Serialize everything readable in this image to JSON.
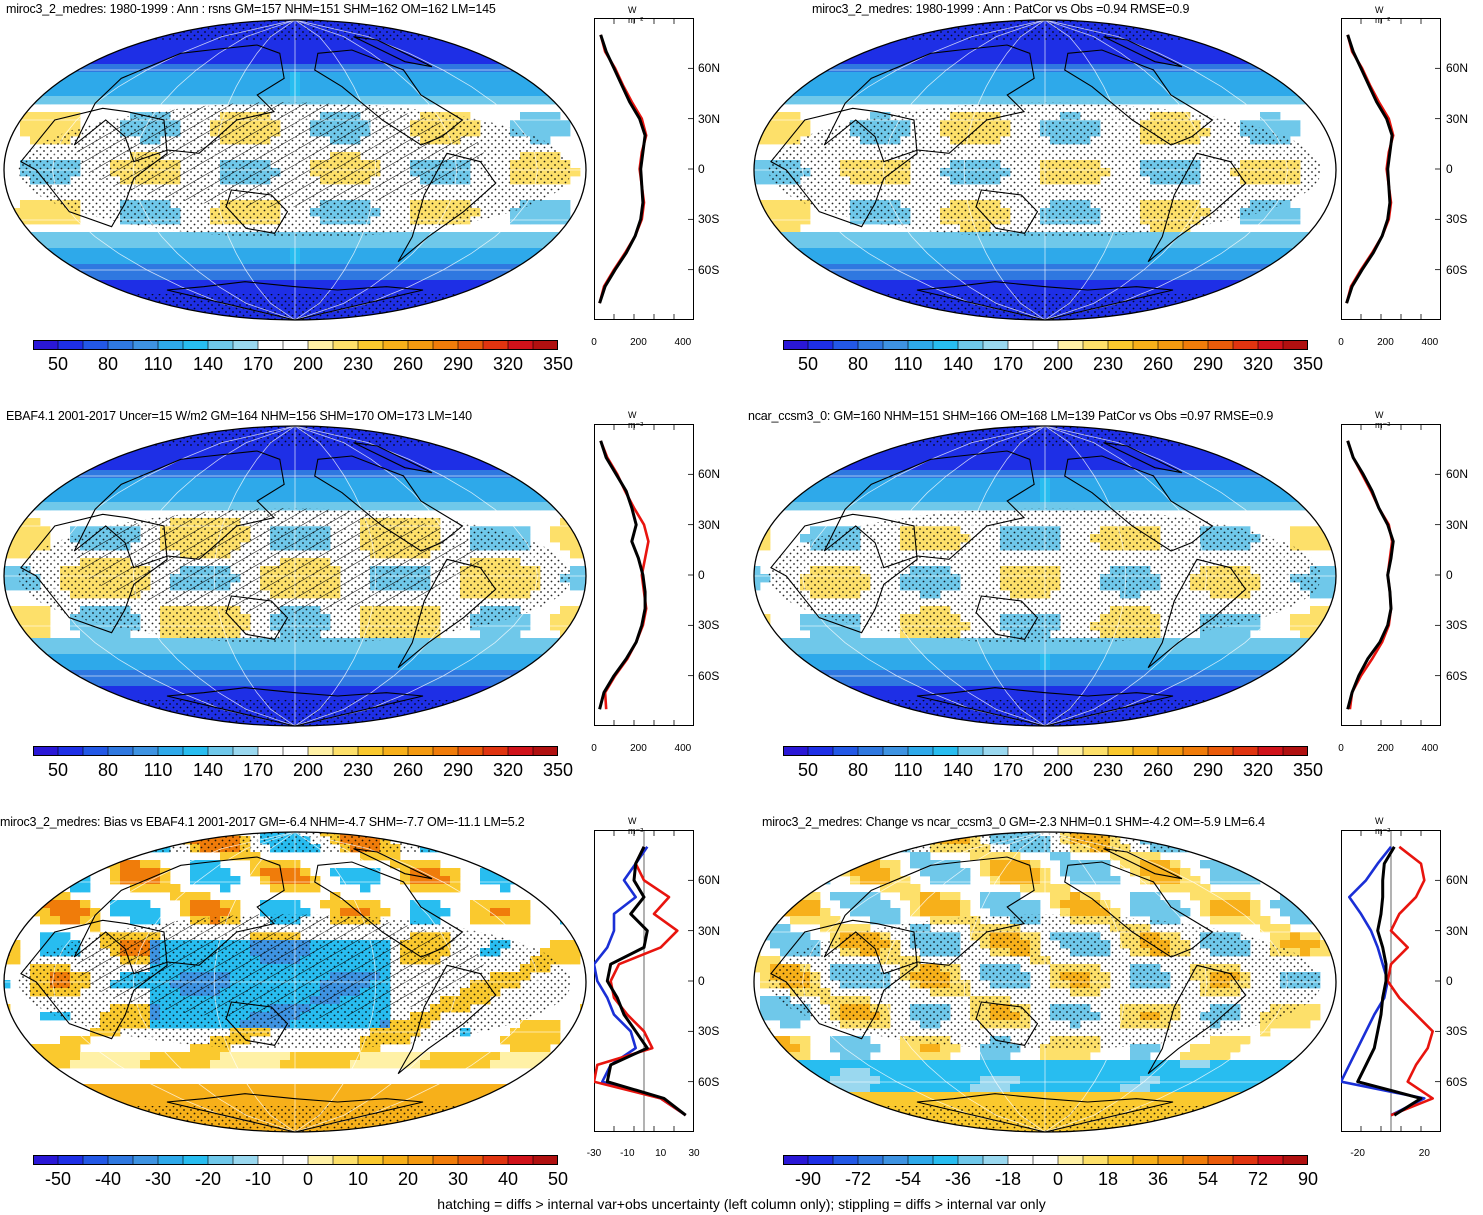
{
  "footer": "hatching = diffs > internal var+obs uncertainty (left column only); stippling = diffs > internal var only",
  "zonal_unit": "W m⁻²",
  "lat_labels": [
    "60N",
    "30N",
    "0",
    "30S",
    "60S"
  ],
  "palettes": {
    "sequential": [
      "#2a17d6",
      "#1e2fe6",
      "#2358e6",
      "#2f78e0",
      "#3e93e2",
      "#2ea9ea",
      "#28bdf0",
      "#6fc8ea",
      "#9ad8ef",
      "#ffffff",
      "#ffffff",
      "#fff1a6",
      "#fde06a",
      "#fac92e",
      "#f7b01a",
      "#f49a10",
      "#f07c0a",
      "#ea5b0a",
      "#e03410",
      "#d0121a",
      "#b01010"
    ],
    "diverging": [
      "#2a17d6",
      "#1e2fe6",
      "#2358e6",
      "#2f78e0",
      "#3e93e2",
      "#2ea9ea",
      "#28bdf0",
      "#6fc8ea",
      "#9ad8ef",
      "#ffffff",
      "#ffffff",
      "#fff1a6",
      "#fde06a",
      "#fac92e",
      "#f7b01a",
      "#f49a10",
      "#f07c0a",
      "#ea5b0a",
      "#e03410",
      "#d0121a",
      "#b01010"
    ],
    "series_colors": {
      "model": "#e8140e",
      "obs": "#1a2fd6",
      "mean": "#000000"
    }
  },
  "panels": [
    {
      "id": "p1",
      "title": "miroc3_2_medres: 1980-1999 : Ann : rsns GM=157 NHM=151 SHM=162 OM=162 LM=145",
      "colorbar_labels": [
        "50",
        "80",
        "110",
        "140",
        "170",
        "200",
        "230",
        "260",
        "290",
        "320",
        "350"
      ],
      "zonal_xticks": [
        "0",
        "200",
        "400"
      ]
    },
    {
      "id": "p2",
      "title": "miroc3_2_medres: 1980-1999 : Ann : PatCor vs Obs =0.94 RMSE=0.9",
      "colorbar_labels": [
        "50",
        "80",
        "110",
        "140",
        "170",
        "200",
        "230",
        "260",
        "290",
        "320",
        "350"
      ],
      "zonal_xticks": [
        "0",
        "200",
        "400"
      ]
    },
    {
      "id": "p3",
      "title": "EBAF4.1 2001-2017 Uncer=15 W/m2 GM=164 NHM=156 SHM=170 OM=173 LM=140",
      "colorbar_labels": [
        "50",
        "80",
        "110",
        "140",
        "170",
        "200",
        "230",
        "260",
        "290",
        "320",
        "350"
      ],
      "zonal_xticks": [
        "0",
        "200",
        "400"
      ]
    },
    {
      "id": "p4",
      "title": "ncar_ccsm3_0: GM=160 NHM=151 SHM=166 OM=168 LM=139 PatCor vs Obs =0.97 RMSE=0.9",
      "colorbar_labels": [
        "50",
        "80",
        "110",
        "140",
        "170",
        "200",
        "230",
        "260",
        "290",
        "320",
        "350"
      ],
      "zonal_xticks": [
        "0",
        "200",
        "400"
      ]
    },
    {
      "id": "p5",
      "title": "miroc3_2_medres: Bias vs EBAF4.1 2001-2017 GM=-6.4 NHM=-4.7 SHM=-7.7 OM=-11.1 LM=5.2",
      "colorbar_labels": [
        "-50",
        "-40",
        "-30",
        "-20",
        "-10",
        "0",
        "10",
        "20",
        "30",
        "40",
        "50"
      ],
      "zonal_xticks": [
        "-30",
        "-10",
        "10",
        "30"
      ]
    },
    {
      "id": "p6",
      "title": "miroc3_2_medres: Change vs ncar_ccsm3_0 GM=-2.3 NHM=0.1 SHM=-4.2 OM=-5.9 LM=6.4",
      "colorbar_labels": [
        "-90",
        "-72",
        "-54",
        "-36",
        "-18",
        "0",
        "18",
        "36",
        "54",
        "72",
        "90"
      ],
      "zonal_xticks": [
        "-20",
        "20"
      ]
    }
  ],
  "chart_data": [
    {
      "type": "heatmap",
      "title": "miroc3_2_medres: 1980-1999 : Ann : rsns GM=157 NHM=151 SHM=162 OM=162 LM=145",
      "colorbar": {
        "min": 50,
        "max": 350,
        "labels": [
          50,
          80,
          110,
          140,
          170,
          200,
          230,
          260,
          290,
          320,
          350
        ]
      },
      "zonal_mean": {
        "xlim": [
          0,
          450
        ],
        "lat": [
          80,
          70,
          60,
          50,
          40,
          30,
          20,
          10,
          0,
          -10,
          -20,
          -30,
          -40,
          -50,
          -60,
          -70,
          -80
        ],
        "series": [
          {
            "values": [
              30,
              50,
              95,
              130,
              170,
              215,
              235,
              215,
              205,
              215,
              225,
              215,
              185,
              140,
              90,
              45,
              25
            ]
          },
          {
            "values": [
              30,
              55,
              90,
              125,
              160,
              205,
              230,
              220,
              210,
              215,
              220,
              210,
              185,
              145,
              95,
              50,
              25
            ]
          }
        ]
      }
    },
    {
      "type": "heatmap",
      "title": "miroc3_2_medres: 1980-1999 : Ann : PatCor vs Obs =0.94 RMSE=0.9",
      "colorbar": {
        "min": 50,
        "max": 350,
        "labels": [
          50,
          80,
          110,
          140,
          170,
          200,
          230,
          260,
          290,
          320,
          350
        ]
      },
      "zonal_mean": {
        "xlim": [
          0,
          450
        ],
        "lat": [
          80,
          70,
          60,
          50,
          40,
          30,
          20,
          10,
          0,
          -10,
          -20,
          -30,
          -40,
          -50,
          -60,
          -70,
          -80
        ],
        "series": [
          {
            "values": [
              30,
              50,
              95,
              130,
              170,
              215,
              235,
              215,
              205,
              215,
              225,
              215,
              185,
              140,
              90,
              45,
              25
            ]
          },
          {
            "values": [
              30,
              55,
              90,
              125,
              160,
              205,
              230,
              220,
              210,
              215,
              220,
              210,
              185,
              145,
              95,
              50,
              25
            ]
          }
        ]
      }
    },
    {
      "type": "heatmap",
      "title": "EBAF4.1 2001-2017 Uncer=15 W/m2 GM=164 NHM=156 SHM=170 OM=173 LM=140",
      "colorbar": {
        "min": 50,
        "max": 350,
        "labels": [
          50,
          80,
          110,
          140,
          170,
          200,
          230,
          260,
          290,
          320,
          350
        ]
      },
      "zonal_mean": {
        "xlim": [
          0,
          450
        ],
        "lat": [
          80,
          70,
          60,
          50,
          40,
          30,
          20,
          10,
          0,
          -10,
          -20,
          -30,
          -40,
          -50,
          -60,
          -70,
          -80
        ],
        "series": [
          {
            "values": [
              30,
              60,
              105,
              140,
              180,
              225,
              245,
              230,
              215,
              225,
              235,
              220,
              190,
              150,
              95,
              50,
              55
            ]
          },
          {
            "values": [
              30,
              55,
              100,
              145,
              170,
              190,
              170,
              200,
              220,
              230,
              230,
              215,
              190,
              145,
              90,
              45,
              25
            ]
          }
        ]
      }
    },
    {
      "type": "heatmap",
      "title": "ncar_ccsm3_0: GM=160 NHM=151 SHM=166 OM=168 LM=139 PatCor vs Obs =0.97 RMSE=0.9",
      "colorbar": {
        "min": 50,
        "max": 350,
        "labels": [
          50,
          80,
          110,
          140,
          170,
          200,
          230,
          260,
          290,
          320,
          350
        ]
      },
      "zonal_mean": {
        "xlim": [
          0,
          450
        ],
        "lat": [
          80,
          70,
          60,
          50,
          40,
          30,
          20,
          10,
          0,
          -10,
          -20,
          -30,
          -40,
          -50,
          -60,
          -70,
          -80
        ],
        "series": [
          {
            "values": [
              30,
              55,
              95,
              135,
              170,
              215,
              230,
              220,
              210,
              220,
              225,
              215,
              185,
              140,
              90,
              50,
              40
            ]
          },
          {
            "values": [
              30,
              55,
              100,
              140,
              170,
              210,
              235,
              225,
              210,
              220,
              225,
              210,
              175,
              120,
              80,
              50,
              30
            ]
          }
        ]
      }
    },
    {
      "type": "heatmap",
      "title": "miroc3_2_medres: Bias vs EBAF4.1 2001-2017 GM=-6.4 NHM=-4.7 SHM=-7.7 OM=-11.1 LM=5.2",
      "colorbar": {
        "min": -50,
        "max": 50,
        "labels": [
          -50,
          -40,
          -30,
          -20,
          -10,
          0,
          10,
          20,
          30,
          40,
          50
        ]
      },
      "zonal_mean": {
        "xlim": [
          -30,
          30
        ],
        "lat": [
          80,
          70,
          60,
          50,
          40,
          30,
          20,
          10,
          0,
          -10,
          -20,
          -30,
          -40,
          -50,
          -60,
          -70,
          -80
        ],
        "series": [
          {
            "values": [
              2,
              -5,
              -12,
              -5,
              -18,
              -18,
              -22,
              -30,
              -28,
              -22,
              -18,
              -8,
              -5,
              -20,
              -25,
              10,
              25
            ]
          },
          {
            "values": [
              0,
              -5,
              0,
              15,
              6,
              20,
              10,
              -15,
              -20,
              -18,
              -10,
              0,
              5,
              -28,
              -30,
              10,
              25
            ]
          },
          {
            "values": [
              0,
              -5,
              -6,
              0,
              -8,
              2,
              0,
              -20,
              -22,
              -16,
              -12,
              -5,
              2,
              -20,
              -22,
              12,
              25
            ]
          }
        ]
      }
    },
    {
      "type": "heatmap",
      "title": "miroc3_2_medres: Change vs ncar_ccsm3_0 GM=-2.3 NHM=0.1 SHM=-4.2 OM=-5.9 LM=6.4",
      "colorbar": {
        "min": -90,
        "max": 90,
        "labels": [
          -90,
          -72,
          -54,
          -36,
          -18,
          0,
          18,
          36,
          54,
          72,
          90
        ]
      },
      "zonal_mean": {
        "xlim": [
          -30,
          30
        ],
        "lat": [
          80,
          70,
          60,
          50,
          40,
          30,
          20,
          10,
          0,
          -10,
          -20,
          -30,
          -40,
          -50,
          -60,
          -70,
          -80
        ],
        "series": [
          {
            "values": [
              0,
              -8,
              -15,
              -25,
              -18,
              -12,
              -8,
              -5,
              -2,
              -4,
              -10,
              -15,
              -20,
              -25,
              -30,
              20,
              0
            ]
          },
          {
            "values": [
              5,
              18,
              20,
              15,
              5,
              0,
              10,
              0,
              -2,
              5,
              15,
              25,
              22,
              15,
              10,
              25,
              0
            ]
          },
          {
            "values": [
              2,
              -4,
              -5,
              -5,
              -6,
              -8,
              -5,
              -3,
              -3,
              -5,
              -6,
              -8,
              -10,
              -15,
              -20,
              18,
              2
            ]
          }
        ]
      }
    }
  ]
}
